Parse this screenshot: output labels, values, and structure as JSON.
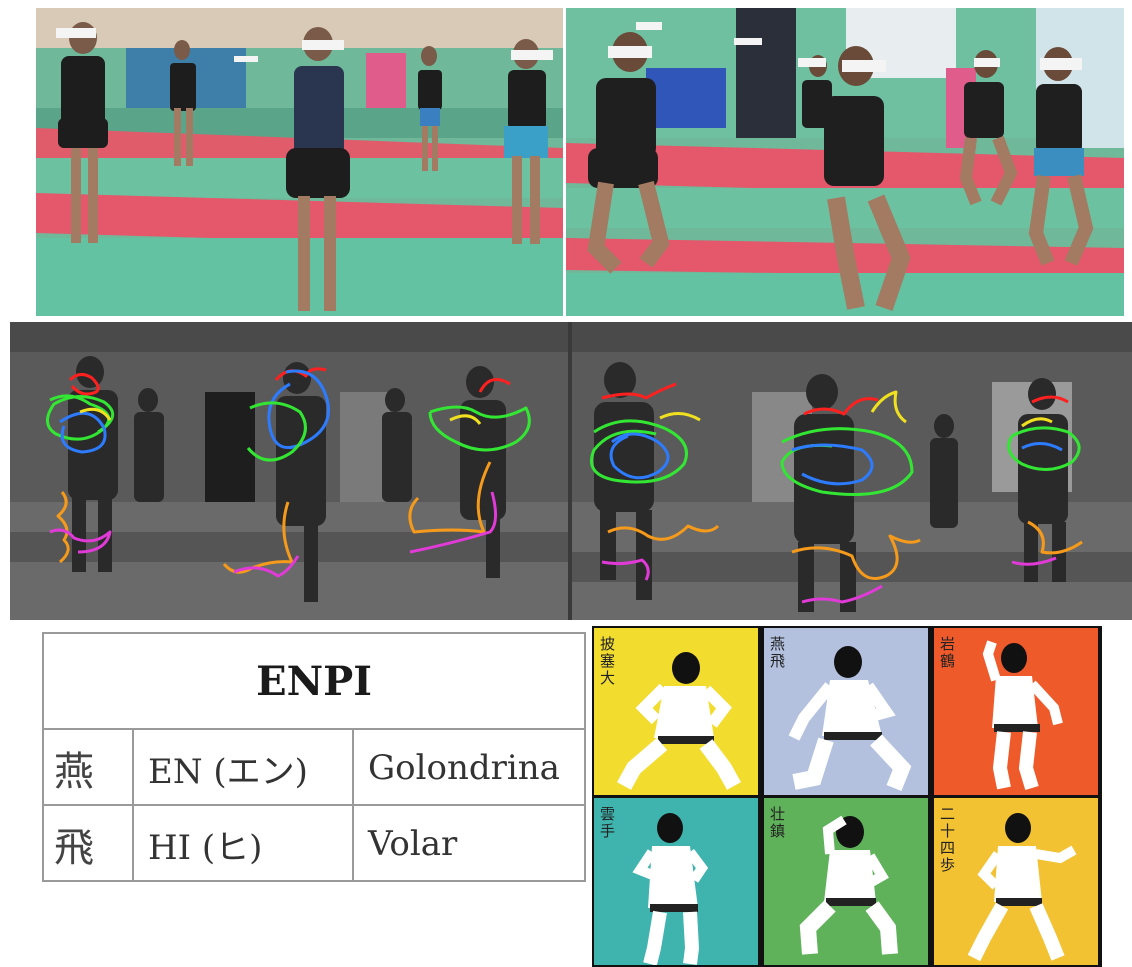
{
  "table": {
    "title": "ENPI",
    "rows": [
      {
        "kanji": "燕",
        "reading": "EN (エン)",
        "meaning": "Golondrina"
      },
      {
        "kanji": "飛",
        "reading": "HI (ヒ)",
        "meaning": "Volar"
      }
    ]
  },
  "tiles": [
    {
      "label": "披塞大",
      "color": "#f2dc2e"
    },
    {
      "label": "燕飛",
      "color": "#b3c1df"
    },
    {
      "label": "岩鶴",
      "color": "#ee5a2a"
    },
    {
      "label": "雲手",
      "color": "#3fb3ad"
    },
    {
      "label": "壮鎮",
      "color": "#5fb25a"
    },
    {
      "label": "二十四歩",
      "color": "#f2c233"
    }
  ],
  "track_colors": {
    "head": "#ff2020",
    "arms": "#2d7cff",
    "torso": "#33e633",
    "shoulder": "#f0e020",
    "legs": "#f59a1a",
    "feet": "#e23ad8"
  }
}
